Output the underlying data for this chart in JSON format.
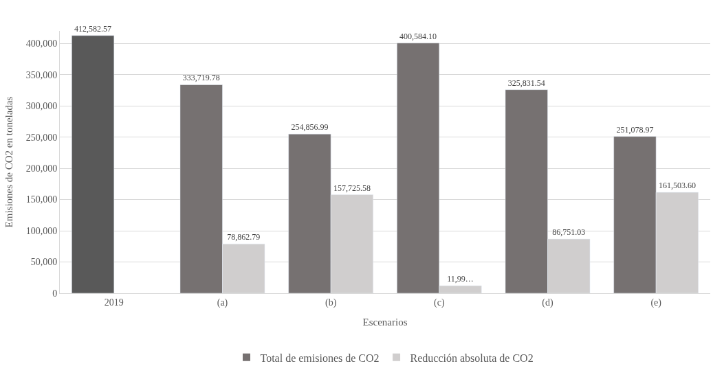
{
  "chart_data": {
    "type": "bar",
    "xlabel": "Escenarios",
    "ylabel": "Emisiones de CO2 en toneladas",
    "categories": [
      "2019",
      "(a)",
      "(b)",
      "(c)",
      "(d)",
      "(e)"
    ],
    "series": [
      {
        "name": "Total de emisiones de CO2",
        "color": "#767171",
        "colors": [
          "#595959",
          "#767171",
          "#767171",
          "#767171",
          "#767171",
          "#767171"
        ],
        "values": [
          412582.57,
          333719.78,
          254856.99,
          400584.1,
          325831.54,
          251078.97
        ],
        "value_labels": [
          "412,582.57",
          "333,719.78",
          "254,856.99",
          "400,584.10",
          "325,831.54",
          "251,078.97"
        ]
      },
      {
        "name": "Reducción absoluta de CO2",
        "color": "#d0cece",
        "values": [
          null,
          78862.79,
          157725.58,
          12000,
          86751.03,
          161503.6
        ],
        "value_labels": [
          null,
          "78,862.79",
          "157,725.58",
          "11,99…",
          "86,751.03",
          "161,503.60"
        ]
      }
    ],
    "ylim": [
      0,
      420000
    ],
    "yticks": [
      0,
      {
        "value": 50000,
        "label": "50,000"
      },
      {
        "value": 100000,
        "label": "100,000"
      },
      {
        "value": 150000,
        "label": "150,000"
      },
      {
        "value": 200000,
        "label": "200,000"
      },
      {
        "value": 250000,
        "label": "250,000"
      },
      {
        "value": 300000,
        "label": "300,000"
      },
      {
        "value": 350000,
        "label": "350,000"
      },
      {
        "value": 400000,
        "label": "400,000"
      }
    ],
    "grid": "y",
    "legend": "bottom"
  }
}
